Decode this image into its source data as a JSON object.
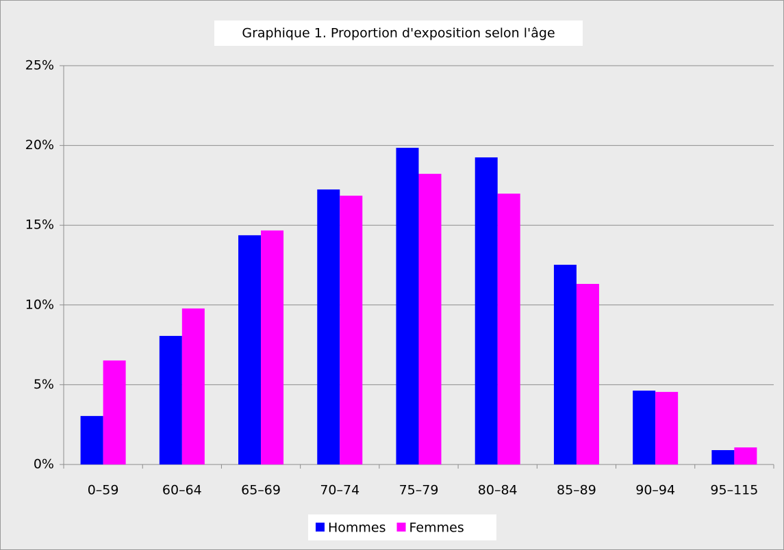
{
  "chart_data": {
    "type": "bar",
    "title": "Graphique 1. Proportion d'exposition selon l'âge",
    "categories": [
      "0–59",
      "60–64",
      "65–69",
      "70–74",
      "75–79",
      "80–84",
      "85–89",
      "90–94",
      "95–115"
    ],
    "series": [
      {
        "name": "Hommes",
        "color": "#0000ff",
        "values": [
          3.04,
          8.06,
          14.37,
          17.24,
          19.85,
          19.25,
          12.52,
          4.63,
          0.9
        ]
      },
      {
        "name": "Femmes",
        "color": "#ff00ff",
        "values": [
          6.52,
          9.78,
          14.67,
          16.85,
          18.22,
          16.98,
          11.32,
          4.55,
          1.07
        ]
      }
    ],
    "ylim": [
      0,
      25
    ],
    "yticks": [
      {
        "value": 0,
        "label": "0%"
      },
      {
        "value": 5,
        "label": "5%"
      },
      {
        "value": 10,
        "label": "10%"
      },
      {
        "value": 15,
        "label": "15%"
      },
      {
        "value": 20,
        "label": "20%"
      },
      {
        "value": 25,
        "label": "25%"
      }
    ],
    "grid": true,
    "legend": "bottom"
  }
}
